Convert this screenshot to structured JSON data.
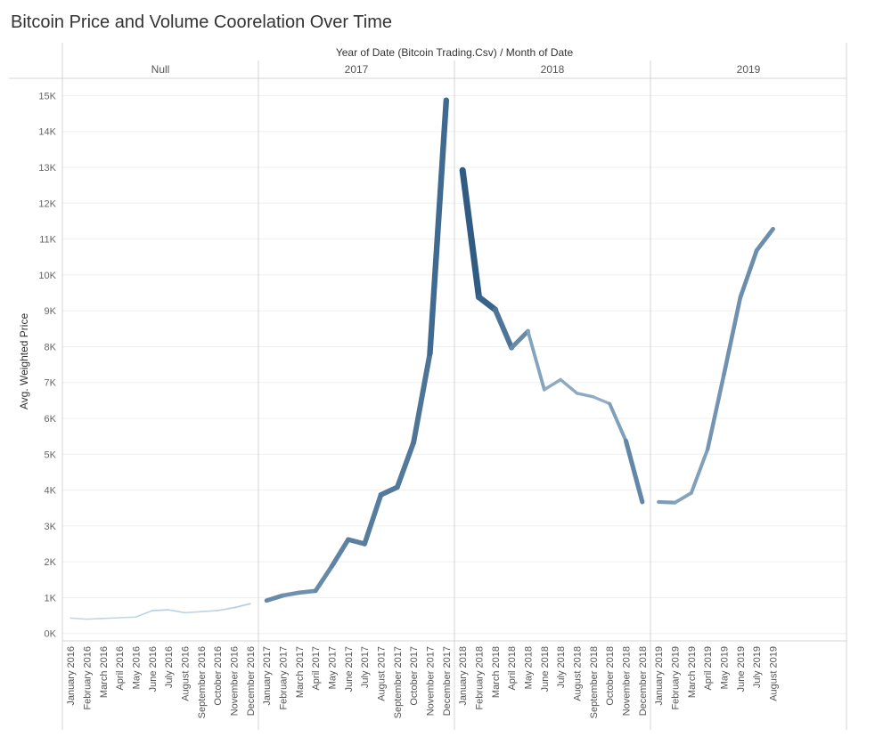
{
  "chart_data": {
    "type": "line",
    "title": "Bitcoin Price and Volume Coorelation Over Time",
    "column_header": "Year of Date (Bitcoin Trading.Csv)  /  Month of Date",
    "ylabel": "Avg. Weighted Price",
    "ylim": [
      -200,
      15500
    ],
    "yticks": [
      0,
      1000,
      2000,
      3000,
      4000,
      5000,
      6000,
      7000,
      8000,
      9000,
      10000,
      11000,
      12000,
      13000,
      14000,
      15000
    ],
    "ytick_labels": [
      "0K",
      "1K",
      "2K",
      "3K",
      "4K",
      "5K",
      "6K",
      "7K",
      "8K",
      "9K",
      "10K",
      "11K",
      "12K",
      "13K",
      "14K",
      "15K"
    ],
    "grid": true,
    "color_encoding": "color and line width encode volume (darker/thicker = higher)",
    "panels": [
      {
        "header": "Null",
        "months": [
          "January 2016",
          "February 2016",
          "March 2016",
          "April 2016",
          "May 2016",
          "June 2016",
          "July 2016",
          "August 2016",
          "September 2016",
          "October 2016",
          "November 2016",
          "December 2016"
        ],
        "values": [
          430,
          400,
          420,
          440,
          460,
          640,
          660,
          580,
          610,
          640,
          720,
          830
        ],
        "intensity": [
          0.05,
          0.05,
          0.05,
          0.05,
          0.05,
          0.08,
          0.08,
          0.06,
          0.06,
          0.06,
          0.08,
          0.1
        ]
      },
      {
        "header": "2017",
        "months": [
          "January 2017",
          "February 2017",
          "March 2017",
          "April 2017",
          "May 2017",
          "June 2017",
          "July 2017",
          "August 2017",
          "September 2017",
          "October 2017",
          "November 2017",
          "December 2017"
        ],
        "values": [
          920,
          1060,
          1140,
          1190,
          1880,
          2620,
          2500,
          3870,
          4080,
          5330,
          7810,
          14870
        ],
        "intensity": [
          0.6,
          0.55,
          0.5,
          0.55,
          0.6,
          0.65,
          0.65,
          0.7,
          0.7,
          0.7,
          0.75,
          0.85
        ]
      },
      {
        "header": "2018",
        "months": [
          "January 2018",
          "February 2018",
          "March 2018",
          "April 2018",
          "May 2018",
          "June 2018",
          "July 2018",
          "August 2018",
          "September 2018",
          "October 2018",
          "November 2018",
          "December 2018"
        ],
        "values": [
          12920,
          9380,
          9030,
          7970,
          8430,
          6800,
          7080,
          6700,
          6600,
          6410,
          5370,
          3670
        ],
        "intensity": [
          0.85,
          0.95,
          0.75,
          0.7,
          0.45,
          0.35,
          0.35,
          0.35,
          0.35,
          0.3,
          0.55,
          0.65
        ]
      },
      {
        "header": "2019",
        "months": [
          "January 2019",
          "February 2019",
          "March 2019",
          "April 2019",
          "May 2019",
          "June 2019",
          "July 2019",
          "August 2019"
        ],
        "values": [
          3670,
          3650,
          3920,
          5140,
          7230,
          9370,
          10680,
          11280
        ],
        "intensity": [
          0.45,
          0.45,
          0.35,
          0.5,
          0.5,
          0.55,
          0.55,
          0.55
        ]
      }
    ]
  }
}
